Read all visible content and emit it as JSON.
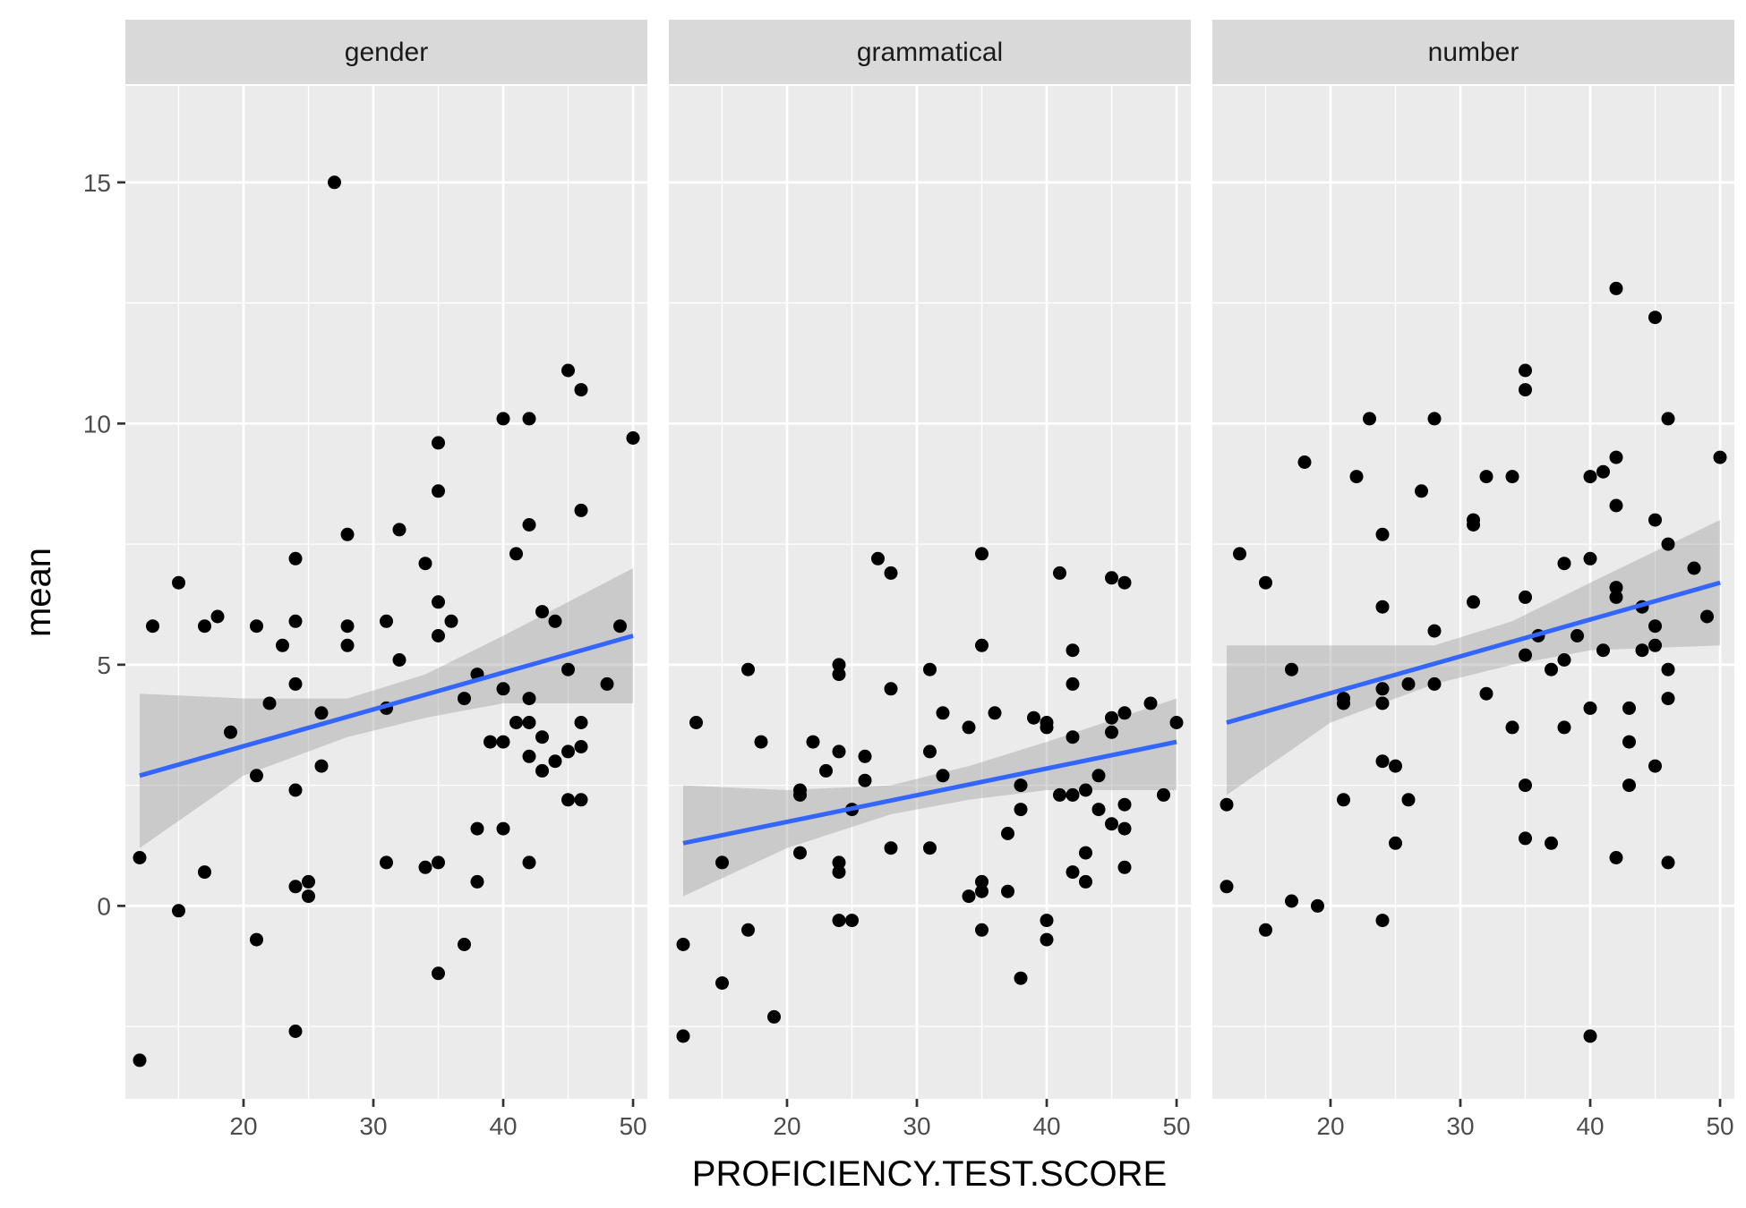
{
  "chart_data": {
    "type": "scatter",
    "facet_variable": "",
    "xlabel": "PROFICIENCY.TEST.SCORE",
    "ylabel": "mean",
    "xlim": [
      10.9,
      51.1
    ],
    "ylim": [
      -4.0,
      17.0
    ],
    "x_ticks": [
      20,
      30,
      40,
      50
    ],
    "y_ticks": [
      0,
      5,
      10,
      15
    ],
    "x_minor": [
      15,
      25,
      35,
      45
    ],
    "y_minor": [
      -2.5,
      2.5,
      7.5,
      12.5
    ],
    "grid": true,
    "legend": "none",
    "colors": {
      "panel_background": "#EBEBEB",
      "strip_background": "#D9D9D9",
      "grid": "#FFFFFF",
      "point": "#000000",
      "fit_line": "#3366FF",
      "ribbon": "#999999"
    },
    "panels": [
      {
        "label": "gender",
        "fit": {
          "x0": 12,
          "y0": 2.7,
          "x1": 50,
          "y1": 5.6
        },
        "ribbon": [
          {
            "x": 12,
            "lo": 1.2,
            "hi": 4.4
          },
          {
            "x": 20,
            "lo": 2.7,
            "hi": 4.3
          },
          {
            "x": 28,
            "lo": 3.5,
            "hi": 4.3
          },
          {
            "x": 34,
            "lo": 3.9,
            "hi": 4.8
          },
          {
            "x": 40,
            "lo": 4.2,
            "hi": 5.6
          },
          {
            "x": 50,
            "lo": 4.2,
            "hi": 7.0
          }
        ],
        "points": [
          [
            12,
            1.0
          ],
          [
            12,
            -3.2
          ],
          [
            13,
            5.8
          ],
          [
            15,
            6.7
          ],
          [
            15,
            -0.1
          ],
          [
            17,
            5.8
          ],
          [
            17,
            0.7
          ],
          [
            18,
            6.0
          ],
          [
            19,
            3.6
          ],
          [
            21,
            5.8
          ],
          [
            21,
            2.7
          ],
          [
            21,
            -0.7
          ],
          [
            22,
            4.2
          ],
          [
            23,
            5.4
          ],
          [
            24,
            7.2
          ],
          [
            24,
            5.9
          ],
          [
            24,
            4.6
          ],
          [
            24,
            2.4
          ],
          [
            24,
            0.4
          ],
          [
            24,
            -2.6
          ],
          [
            25,
            0.5
          ],
          [
            25,
            0.2
          ],
          [
            26,
            4.0
          ],
          [
            26,
            2.9
          ],
          [
            27,
            15.0
          ],
          [
            28,
            7.7
          ],
          [
            28,
            5.8
          ],
          [
            28,
            5.4
          ],
          [
            31,
            5.9
          ],
          [
            31,
            4.1
          ],
          [
            31,
            0.9
          ],
          [
            32,
            7.8
          ],
          [
            32,
            5.1
          ],
          [
            34,
            7.1
          ],
          [
            34,
            0.8
          ],
          [
            35,
            9.6
          ],
          [
            35,
            8.6
          ],
          [
            35,
            6.3
          ],
          [
            35,
            5.6
          ],
          [
            35,
            0.9
          ],
          [
            35,
            -1.4
          ],
          [
            36,
            5.9
          ],
          [
            37,
            4.3
          ],
          [
            37,
            -0.8
          ],
          [
            38,
            4.8
          ],
          [
            38,
            1.6
          ],
          [
            38,
            0.5
          ],
          [
            39,
            3.4
          ],
          [
            40,
            10.1
          ],
          [
            40,
            4.5
          ],
          [
            40,
            3.4
          ],
          [
            40,
            1.6
          ],
          [
            41,
            7.3
          ],
          [
            41,
            3.8
          ],
          [
            42,
            10.1
          ],
          [
            42,
            7.9
          ],
          [
            42,
            4.3
          ],
          [
            42,
            3.8
          ],
          [
            42,
            3.1
          ],
          [
            42,
            0.9
          ],
          [
            43,
            6.1
          ],
          [
            43,
            3.5
          ],
          [
            43,
            2.8
          ],
          [
            44,
            5.9
          ],
          [
            44,
            3.0
          ],
          [
            45,
            11.1
          ],
          [
            45,
            4.9
          ],
          [
            45,
            3.2
          ],
          [
            45,
            2.2
          ],
          [
            46,
            10.7
          ],
          [
            46,
            8.2
          ],
          [
            46,
            3.8
          ],
          [
            46,
            3.3
          ],
          [
            46,
            2.2
          ],
          [
            48,
            4.6
          ],
          [
            49,
            5.8
          ],
          [
            50,
            9.7
          ]
        ]
      },
      {
        "label": "grammatical",
        "fit": {
          "x0": 12,
          "y0": 1.3,
          "x1": 50,
          "y1": 3.4
        },
        "ribbon": [
          {
            "x": 12,
            "lo": 0.2,
            "hi": 2.5
          },
          {
            "x": 20,
            "lo": 1.2,
            "hi": 2.4
          },
          {
            "x": 28,
            "lo": 1.9,
            "hi": 2.5
          },
          {
            "x": 34,
            "lo": 2.2,
            "hi": 2.9
          },
          {
            "x": 40,
            "lo": 2.4,
            "hi": 3.4
          },
          {
            "x": 50,
            "lo": 2.4,
            "hi": 4.3
          }
        ],
        "points": [
          [
            12,
            -0.8
          ],
          [
            12,
            -2.7
          ],
          [
            13,
            3.8
          ],
          [
            15,
            0.9
          ],
          [
            15,
            -1.6
          ],
          [
            17,
            4.9
          ],
          [
            17,
            -0.5
          ],
          [
            18,
            3.4
          ],
          [
            19,
            -2.3
          ],
          [
            21,
            2.4
          ],
          [
            21,
            2.3
          ],
          [
            21,
            1.1
          ],
          [
            22,
            3.4
          ],
          [
            23,
            2.8
          ],
          [
            24,
            5.0
          ],
          [
            24,
            4.8
          ],
          [
            24,
            3.2
          ],
          [
            24,
            0.9
          ],
          [
            24,
            0.7
          ],
          [
            24,
            -0.3
          ],
          [
            25,
            2.0
          ],
          [
            25,
            -0.3
          ],
          [
            26,
            3.1
          ],
          [
            26,
            2.6
          ],
          [
            27,
            7.2
          ],
          [
            28,
            6.9
          ],
          [
            28,
            4.5
          ],
          [
            28,
            1.2
          ],
          [
            31,
            4.9
          ],
          [
            31,
            3.2
          ],
          [
            31,
            1.2
          ],
          [
            32,
            4.0
          ],
          [
            32,
            2.7
          ],
          [
            34,
            3.7
          ],
          [
            34,
            0.2
          ],
          [
            35,
            7.3
          ],
          [
            35,
            5.4
          ],
          [
            35,
            0.5
          ],
          [
            35,
            0.3
          ],
          [
            35,
            -0.5
          ],
          [
            36,
            4.0
          ],
          [
            37,
            1.5
          ],
          [
            37,
            0.3
          ],
          [
            38,
            2.5
          ],
          [
            38,
            2.0
          ],
          [
            38,
            -1.5
          ],
          [
            39,
            3.9
          ],
          [
            40,
            3.8
          ],
          [
            40,
            3.7
          ],
          [
            40,
            -0.3
          ],
          [
            40,
            -0.7
          ],
          [
            41,
            6.9
          ],
          [
            41,
            2.3
          ],
          [
            42,
            5.3
          ],
          [
            42,
            4.6
          ],
          [
            42,
            3.5
          ],
          [
            42,
            2.3
          ],
          [
            42,
            0.7
          ],
          [
            43,
            2.4
          ],
          [
            43,
            1.1
          ],
          [
            43,
            0.5
          ],
          [
            44,
            2.7
          ],
          [
            44,
            2.0
          ],
          [
            45,
            6.8
          ],
          [
            45,
            3.9
          ],
          [
            45,
            3.6
          ],
          [
            45,
            1.7
          ],
          [
            46,
            6.7
          ],
          [
            46,
            4.0
          ],
          [
            46,
            2.1
          ],
          [
            46,
            1.6
          ],
          [
            46,
            0.8
          ],
          [
            48,
            4.2
          ],
          [
            49,
            2.3
          ],
          [
            50,
            3.8
          ]
        ]
      },
      {
        "label": "number",
        "fit": {
          "x0": 12,
          "y0": 3.8,
          "x1": 50,
          "y1": 6.7
        },
        "ribbon": [
          {
            "x": 12,
            "lo": 2.3,
            "hi": 5.4
          },
          {
            "x": 20,
            "lo": 3.8,
            "hi": 5.4
          },
          {
            "x": 28,
            "lo": 4.6,
            "hi": 5.4
          },
          {
            "x": 34,
            "lo": 5.0,
            "hi": 5.9
          },
          {
            "x": 40,
            "lo": 5.3,
            "hi": 6.7
          },
          {
            "x": 50,
            "lo": 5.4,
            "hi": 8.0
          }
        ],
        "points": [
          [
            12,
            2.1
          ],
          [
            12,
            0.4
          ],
          [
            13,
            7.3
          ],
          [
            15,
            6.7
          ],
          [
            15,
            -0.5
          ],
          [
            17,
            4.9
          ],
          [
            17,
            0.1
          ],
          [
            18,
            9.2
          ],
          [
            19,
            0.0
          ],
          [
            21,
            4.3
          ],
          [
            21,
            4.2
          ],
          [
            21,
            2.2
          ],
          [
            22,
            8.9
          ],
          [
            23,
            10.1
          ],
          [
            24,
            7.7
          ],
          [
            24,
            6.2
          ],
          [
            24,
            4.5
          ],
          [
            24,
            4.2
          ],
          [
            24,
            3.0
          ],
          [
            24,
            -0.3
          ],
          [
            25,
            2.9
          ],
          [
            25,
            1.3
          ],
          [
            26,
            4.6
          ],
          [
            26,
            2.2
          ],
          [
            27,
            8.6
          ],
          [
            28,
            10.1
          ],
          [
            28,
            5.7
          ],
          [
            28,
            4.6
          ],
          [
            31,
            8.0
          ],
          [
            31,
            7.9
          ],
          [
            31,
            6.3
          ],
          [
            32,
            8.9
          ],
          [
            32,
            4.4
          ],
          [
            34,
            8.9
          ],
          [
            34,
            3.7
          ],
          [
            35,
            11.1
          ],
          [
            35,
            10.7
          ],
          [
            35,
            6.4
          ],
          [
            35,
            5.2
          ],
          [
            35,
            2.5
          ],
          [
            35,
            1.4
          ],
          [
            36,
            5.6
          ],
          [
            37,
            4.9
          ],
          [
            37,
            1.3
          ],
          [
            38,
            7.1
          ],
          [
            38,
            5.1
          ],
          [
            38,
            3.7
          ],
          [
            39,
            5.6
          ],
          [
            40,
            8.9
          ],
          [
            40,
            7.2
          ],
          [
            40,
            4.1
          ],
          [
            40,
            -2.7
          ],
          [
            41,
            9.0
          ],
          [
            41,
            5.3
          ],
          [
            42,
            12.8
          ],
          [
            42,
            9.3
          ],
          [
            42,
            8.3
          ],
          [
            42,
            6.6
          ],
          [
            42,
            6.4
          ],
          [
            42,
            1.0
          ],
          [
            43,
            4.1
          ],
          [
            43,
            3.4
          ],
          [
            43,
            2.5
          ],
          [
            44,
            6.2
          ],
          [
            44,
            5.3
          ],
          [
            45,
            12.2
          ],
          [
            45,
            8.0
          ],
          [
            45,
            5.8
          ],
          [
            45,
            5.4
          ],
          [
            45,
            2.9
          ],
          [
            46,
            10.1
          ],
          [
            46,
            7.5
          ],
          [
            46,
            4.9
          ],
          [
            46,
            4.3
          ],
          [
            46,
            0.9
          ],
          [
            48,
            7.0
          ],
          [
            49,
            6.0
          ],
          [
            50,
            9.3
          ]
        ]
      }
    ]
  }
}
